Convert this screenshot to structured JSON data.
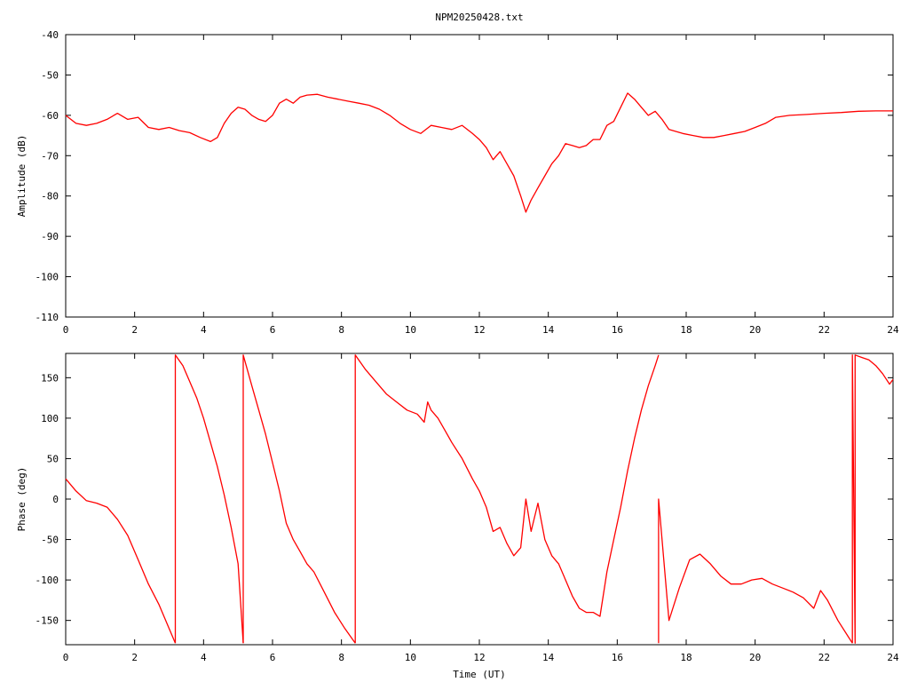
{
  "chart_data": [
    {
      "type": "line",
      "title": "NPM20250428.txt",
      "xlabel": "",
      "ylabel": "Amplitude (dB)",
      "xlim": [
        0,
        24
      ],
      "ylim": [
        -110,
        -40
      ],
      "xticks": [
        "0",
        "2",
        "4",
        "6",
        "8",
        "10",
        "12",
        "14",
        "16",
        "18",
        "20",
        "22",
        "24"
      ],
      "yticks": [
        "-40",
        "-50",
        "-60",
        "-70",
        "-80",
        "-90",
        "-100",
        "-110"
      ],
      "xtick_values": [
        0,
        2,
        4,
        6,
        8,
        10,
        12,
        14,
        16,
        18,
        20,
        22,
        24
      ],
      "ytick_values": [
        -40,
        -50,
        -60,
        -70,
        -80,
        -90,
        -100,
        -110
      ],
      "series_color": "#ff0000",
      "series": [
        {
          "x": [
            0,
            0.3,
            0.6,
            0.9,
            1.2,
            1.5,
            1.8,
            2.1,
            2.4,
            2.7,
            3.0,
            3.3,
            3.6,
            3.9,
            4.2,
            4.4,
            4.6,
            4.8,
            5.0,
            5.2,
            5.4,
            5.6,
            5.8,
            6.0,
            6.2,
            6.4,
            6.6,
            6.8,
            7.0,
            7.3,
            7.6,
            7.9,
            8.2,
            8.5,
            8.8,
            9.1,
            9.4,
            9.7,
            10.0,
            10.3,
            10.6,
            10.9,
            11.2,
            11.5,
            11.8,
            12.0,
            12.2,
            12.4,
            12.6,
            12.8,
            13.0,
            13.2,
            13.35,
            13.5,
            13.7,
            13.9,
            14.1,
            14.3,
            14.5,
            14.7,
            14.9,
            15.1,
            15.3,
            15.5,
            15.7,
            15.9,
            16.1,
            16.3,
            16.5,
            16.7,
            16.9,
            17.1,
            17.3,
            17.5,
            17.7,
            17.9,
            18.2,
            18.5,
            18.8,
            19.1,
            19.4,
            19.7,
            20.0,
            20.3,
            20.6,
            21.0,
            21.5,
            22.0,
            22.5,
            23.0,
            23.5,
            24.0
          ],
          "y": [
            -60,
            -62,
            -62.5,
            -62,
            -61,
            -59.5,
            -61,
            -60.5,
            -63,
            -63.5,
            -63,
            -63.8,
            -64.3,
            -65.5,
            -66.5,
            -65.5,
            -62,
            -59.5,
            -58,
            -58.5,
            -60,
            -61,
            -61.5,
            -60,
            -57,
            -56,
            -57,
            -55.5,
            -55,
            -54.8,
            -55.5,
            -56,
            -56.5,
            -57,
            -57.5,
            -58.5,
            -60,
            -62,
            -63.5,
            -64.5,
            -62.5,
            -63,
            -63.5,
            -62.5,
            -64.5,
            -66,
            -68,
            -71,
            -69,
            -72,
            -75,
            -80,
            -84,
            -81,
            -78,
            -75,
            -72,
            -70,
            -67,
            -67.5,
            -68,
            -67.5,
            -66,
            -66,
            -62.5,
            -61.5,
            -58,
            -54.5,
            -56,
            -58,
            -60,
            -59,
            -61,
            -63.5,
            -64,
            -64.5,
            -65,
            -65.5,
            -65.5,
            -65,
            -64.5,
            -64,
            -63,
            -62,
            -60.5,
            -60,
            -59.8,
            -59.5,
            -59.3,
            -59,
            -58.9,
            -58.9
          ]
        }
      ]
    },
    {
      "type": "line",
      "title": "",
      "xlabel": "Time (UT)",
      "ylabel": "Phase (deg)",
      "xlim": [
        0,
        24
      ],
      "ylim": [
        -180,
        180
      ],
      "xticks": [
        "0",
        "2",
        "4",
        "6",
        "8",
        "10",
        "12",
        "14",
        "16",
        "18",
        "20",
        "22",
        "24"
      ],
      "yticks": [
        "150",
        "100",
        "50",
        "0",
        "-50",
        "-100",
        "-150"
      ],
      "xtick_values": [
        0,
        2,
        4,
        6,
        8,
        10,
        12,
        14,
        16,
        18,
        20,
        22,
        24
      ],
      "ytick_values": [
        150,
        100,
        50,
        0,
        -50,
        -100,
        -150
      ],
      "series_color": "#ff0000",
      "series": [
        {
          "x": [
            0,
            0.3,
            0.6,
            0.9,
            1.2,
            1.5,
            1.8,
            2.1,
            2.4,
            2.7,
            3.0,
            3.18
          ],
          "y": [
            25,
            10,
            -2,
            -5,
            -10,
            -25,
            -45,
            -75,
            -105,
            -130,
            -160,
            -178
          ]
        },
        {
          "x": [
            3.18,
            3.18,
            3.4,
            3.6,
            3.8,
            4.0,
            4.2,
            4.4,
            4.6,
            4.8,
            5.0,
            5.15
          ],
          "y": [
            -178,
            178,
            165,
            145,
            125,
            100,
            70,
            40,
            5,
            -35,
            -80,
            -178
          ]
        },
        {
          "x": [
            5.15,
            5.15,
            5.4,
            5.6,
            5.8,
            6.0,
            6.2,
            6.4,
            6.6,
            6.8,
            7.0,
            7.2,
            7.5,
            7.8,
            8.1,
            8.4
          ],
          "y": [
            -178,
            178,
            140,
            110,
            80,
            45,
            10,
            -30,
            -50,
            -65,
            -80,
            -90,
            -115,
            -140,
            -160,
            -178
          ]
        },
        {
          "x": [
            8.4,
            8.4,
            8.7,
            9.0,
            9.3,
            9.6,
            9.9,
            10.2,
            10.4,
            10.5,
            10.6,
            10.8,
            11.0,
            11.2,
            11.5,
            11.8,
            12.0,
            12.2,
            12.4,
            12.6,
            12.8,
            13.0,
            13.2,
            13.35,
            13.5,
            13.7,
            13.9,
            14.1,
            14.3,
            14.5,
            14.7,
            14.9,
            15.1,
            15.3,
            15.5,
            15.7,
            15.9,
            16.1,
            16.3,
            16.5,
            16.7,
            16.9,
            17.1,
            17.2
          ],
          "y": [
            -178,
            178,
            160,
            145,
            130,
            120,
            110,
            105,
            95,
            120,
            110,
            100,
            85,
            70,
            50,
            25,
            10,
            -10,
            -40,
            -35,
            -55,
            -70,
            -60,
            0,
            -40,
            -5,
            -50,
            -70,
            -80,
            -100,
            -120,
            -135,
            -140,
            -140,
            -145,
            -90,
            -50,
            -10,
            35,
            75,
            110,
            140,
            165,
            178
          ]
        },
        {
          "x": [
            17.2,
            17.2,
            17.5,
            17.8,
            18.1,
            18.4,
            18.7,
            19.0,
            19.3,
            19.6,
            19.9,
            20.2,
            20.5,
            20.8,
            21.1,
            21.4,
            21.7,
            21.9,
            22.1,
            22.4,
            22.7,
            22.82
          ],
          "y": [
            -178,
            0,
            -150,
            -110,
            -75,
            -68,
            -80,
            -95,
            -105,
            -105,
            -100,
            -98,
            -105,
            -110,
            -115,
            -122,
            -135,
            -113,
            -125,
            -150,
            -170,
            -178
          ]
        },
        {
          "x": [
            22.82,
            22.82,
            22.9,
            22.9,
            23.1,
            23.3,
            23.5,
            23.7,
            23.9,
            24.0
          ],
          "y": [
            -178,
            178,
            -178,
            178,
            175,
            172,
            165,
            155,
            142,
            148
          ]
        }
      ]
    }
  ]
}
